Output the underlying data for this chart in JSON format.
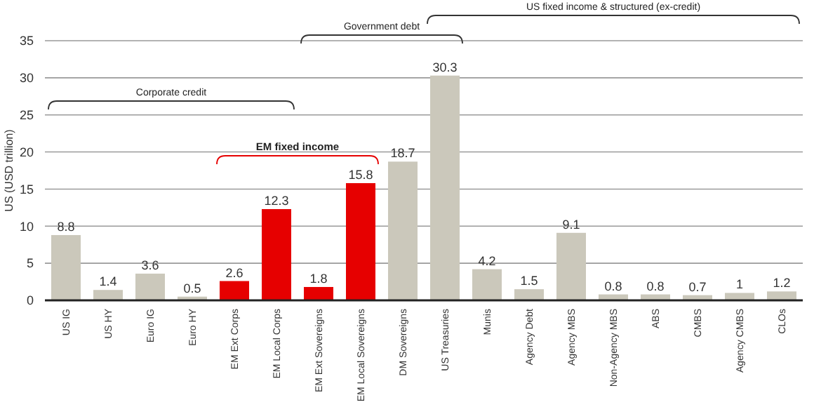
{
  "chart_data": {
    "type": "bar",
    "ylabel": "US (USD trillion)",
    "categories": [
      "US IG",
      "US HY",
      "Euro IG",
      "Euro HY",
      "EM Ext Corps",
      "EM Local Corps",
      "EM Ext Sovereigns",
      "EM Local Sovereigns",
      "DM Sovereigns",
      "US Treasuries",
      "Munis",
      "Agency Debt",
      "Agency MBS",
      "Non-Agency MBS",
      "ABS",
      "CMBS",
      "Agency CMBS",
      "CLOs"
    ],
    "values": [
      8.8,
      1.4,
      3.6,
      0.5,
      2.6,
      12.3,
      1.8,
      15.8,
      18.7,
      30.3,
      4.2,
      1.5,
      9.1,
      0.8,
      0.8,
      0.7,
      1,
      1.2
    ],
    "colors": [
      "#cbc8bb",
      "#cbc8bb",
      "#cbc8bb",
      "#cbc8bb",
      "#e60000",
      "#e60000",
      "#e60000",
      "#e60000",
      "#cbc8bb",
      "#cbc8bb",
      "#cbc8bb",
      "#cbc8bb",
      "#cbc8bb",
      "#cbc8bb",
      "#cbc8bb",
      "#cbc8bb",
      "#cbc8bb",
      "#cbc8bb"
    ],
    "ylim": [
      0,
      35
    ],
    "yticks": [
      0,
      5,
      10,
      15,
      20,
      25,
      30,
      35
    ],
    "grid": "y",
    "data_labels": true,
    "annotations": [
      "Corporate credit",
      "EM fixed income",
      "Government debt",
      "US fixed income & structured (ex-credit)"
    ]
  }
}
